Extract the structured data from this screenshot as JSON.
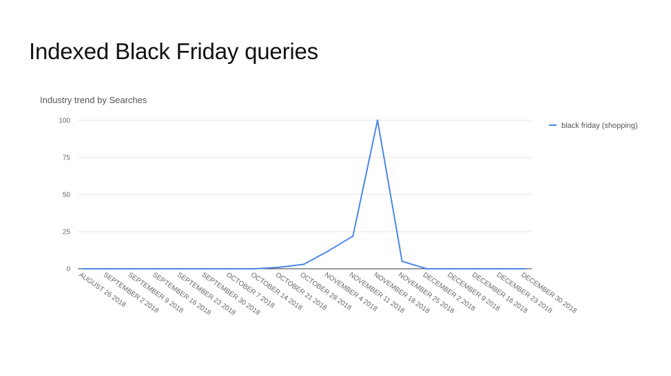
{
  "slide": {
    "title": "Indexed Black Friday queries"
  },
  "chart_data": {
    "type": "line",
    "title": "Industry trend by Searches",
    "xlabel": "",
    "ylabel": "",
    "categories": [
      "AUGUST 26 2018",
      "SEPTEMBER 2 2018",
      "SEPTEMBER 9 2018",
      "SEPTEMBER 16 2018",
      "SEPTEMBER 23 2018",
      "SEPTEMBER 30 2018",
      "OCTOBER 7 2018",
      "OCTOBER 14 2018",
      "OCTOBER 21 2018",
      "OCTOBER 28 2018",
      "NOVEMBER 4 2018",
      "NOVEMBER 11 2018",
      "NOVEMBER 18 2018",
      "NOVEMBER 25 2018",
      "DECEMBER 2 2018",
      "DECEMBER 9 2018",
      "DECEMBER 16 2018",
      "DECEMBER 23 2018",
      "DECEMBER 30 2018"
    ],
    "series": [
      {
        "name": "black friday (shopping)",
        "color": "#4a86e8",
        "values": [
          0,
          0,
          0,
          0,
          0,
          0,
          0,
          0,
          1,
          3,
          12,
          22,
          100,
          5,
          0,
          0,
          0,
          0,
          0
        ]
      }
    ],
    "ylim": [
      0,
      100
    ],
    "yticks": [
      "0",
      "25",
      "50",
      "75",
      "100"
    ],
    "grid": true,
    "legend_position": "right"
  }
}
